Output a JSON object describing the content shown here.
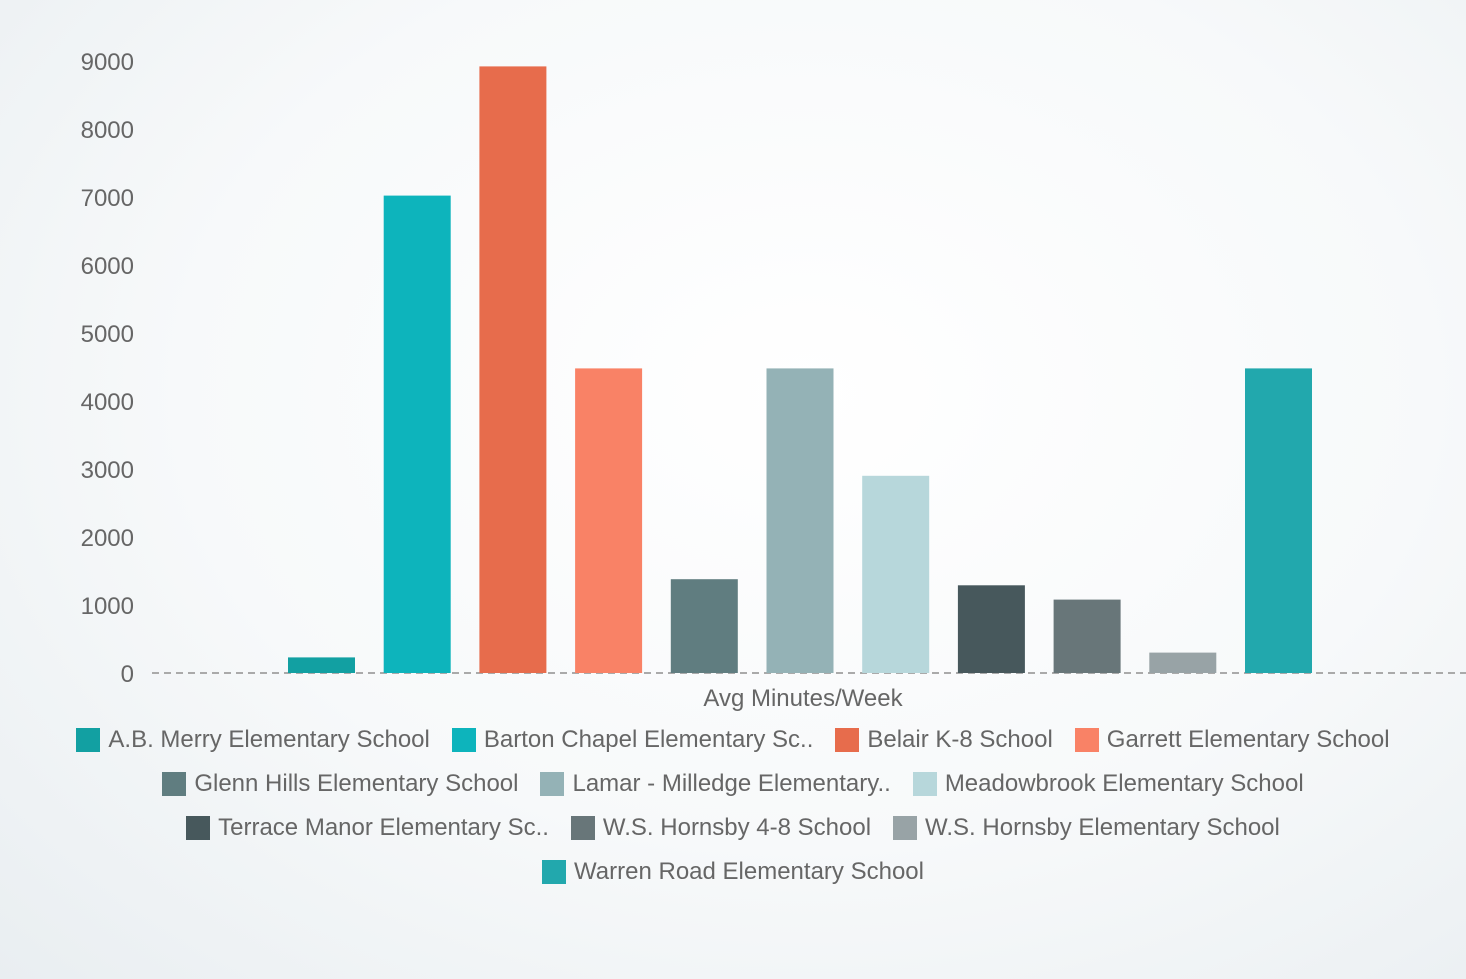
{
  "chart_data": {
    "type": "bar",
    "xlabel": "Avg Minutes/Week",
    "ylabel": "",
    "ylim": [
      0,
      9000
    ],
    "yticks": [
      0,
      1000,
      2000,
      3000,
      4000,
      5000,
      6000,
      7000,
      8000,
      9000
    ],
    "grid": false,
    "legend_position": "bottom",
    "series": [
      {
        "name": "A.B. Merry Elementary School",
        "value": 230,
        "color": "#12A0A2"
      },
      {
        "name": "Barton Chapel Elementary Sc..",
        "value": 7020,
        "color": "#0DB4BC"
      },
      {
        "name": "Belair K-8 School",
        "value": 8920,
        "color": "#E76C4C"
      },
      {
        "name": "Garrett Elementary School",
        "value": 4480,
        "color": "#F98266"
      },
      {
        "name": "Glenn Hills Elementary School",
        "value": 1380,
        "color": "#607D80"
      },
      {
        "name": "Lamar - Milledge Elementary..",
        "value": 4480,
        "color": "#94B2B6"
      },
      {
        "name": "Meadowbrook Elementary School",
        "value": 2900,
        "color": "#B7D7DB"
      },
      {
        "name": "Terrace Manor Elementary Sc..",
        "value": 1290,
        "color": "#47585C"
      },
      {
        "name": "W.S. Hornsby 4-8 School",
        "value": 1080,
        "color": "#687679"
      },
      {
        "name": "W.S. Hornsby Elementary School",
        "value": 300,
        "color": "#98A3A6"
      },
      {
        "name": "Warren Road Elementary School",
        "value": 4480,
        "color": "#22A8AD"
      }
    ]
  }
}
